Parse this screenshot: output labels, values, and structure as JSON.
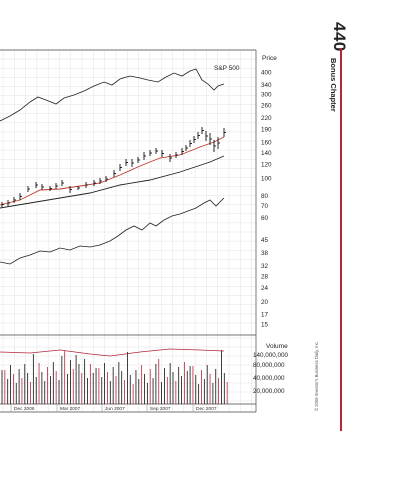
{
  "page": {
    "page_number": "440",
    "chapter_title": "Bonus Chapter",
    "copyright": "© 2008 Investor's Business Daily, Inc."
  },
  "chart": {
    "index_label": "S&P 500",
    "price_title": "Price",
    "price_ticks": [
      "400",
      "340",
      "300",
      "260",
      "220",
      "190",
      "160",
      "140",
      "120",
      "100",
      "80",
      "70",
      "60",
      "45",
      "38",
      "32",
      "28",
      "24",
      "20",
      "17",
      "15"
    ],
    "volume_title": "Volume",
    "volume_ticks": [
      "140,000,000",
      "80,000,000",
      "40,000,000",
      "20,000,000"
    ],
    "date_labels": [
      "Dec 2006",
      "Mar 2007",
      "Jun 2007",
      "Sep 2007",
      "Dec 2007"
    ],
    "colors": {
      "accent": "#b5263a",
      "moving_average_short": "#c0392b",
      "grid": "#d8d8d8"
    }
  },
  "chart_data": {
    "type": "line",
    "title": "",
    "price_scale": "log",
    "ylim": [
      15,
      400
    ],
    "x": [
      "Dec 2006",
      "Mar 2007",
      "Jun 2007",
      "Sep 2007",
      "Dec 2007"
    ],
    "series": [
      {
        "name": "S&P 500",
        "values": [
          305,
          320,
          360,
          380,
          350
        ]
      }
    ],
    "volume_ylim": [
      0,
      140000000
    ]
  }
}
